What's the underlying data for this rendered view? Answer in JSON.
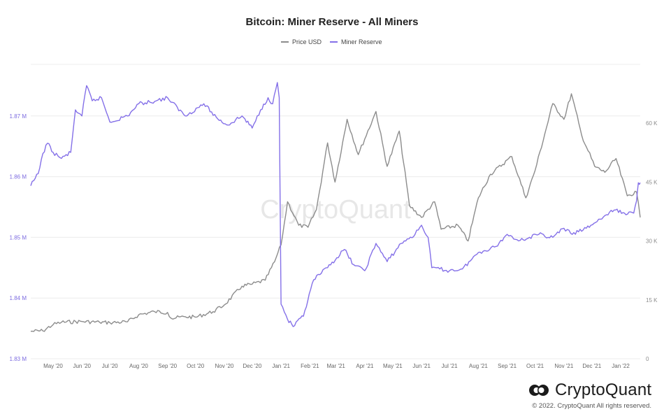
{
  "chart_data": {
    "type": "line",
    "title": "Bitcoin: Miner Reserve - All Miners",
    "legend": {
      "placement": "top-center"
    },
    "x_ticks": [
      "May '20",
      "Jun '20",
      "Jul '20",
      "Aug '20",
      "Sep '20",
      "Oct '20",
      "Nov '20",
      "Dec '20",
      "Jan '21",
      "Feb '21",
      "Mar '21",
      "Apr '21",
      "May '21",
      "Jun '21",
      "Jul '21",
      "Aug '21",
      "Sep '21",
      "Oct '21",
      "Nov '21",
      "Dec '21",
      "Jan '22"
    ],
    "y_left": {
      "ticks": [
        "1.83 M",
        "1.84 M",
        "1.85 M",
        "1.86 M",
        "1.87 M"
      ],
      "range": [
        1.83,
        1.8785
      ],
      "unit": "M"
    },
    "y_right": {
      "ticks": [
        "0",
        "15 K",
        "30 K",
        "45 K",
        "60 K"
      ],
      "range": [
        0,
        75000
      ]
    },
    "grid": "horizontal",
    "watermark": "CryptoQuant",
    "series": [
      {
        "name": "Price USD",
        "axis": "right",
        "color": "#8c8c8c",
        "points": [
          [
            "2020-04-07",
            7000
          ],
          [
            "2020-04-20",
            7100
          ],
          [
            "2020-05-01",
            8700
          ],
          [
            "2020-05-10",
            9300
          ],
          [
            "2020-06-01",
            9500
          ],
          [
            "2020-06-20",
            9300
          ],
          [
            "2020-07-01",
            9200
          ],
          [
            "2020-07-20",
            9400
          ],
          [
            "2020-08-01",
            11200
          ],
          [
            "2020-08-18",
            12000
          ],
          [
            "2020-09-01",
            11800
          ],
          [
            "2020-09-05",
            10300
          ],
          [
            "2020-09-20",
            10700
          ],
          [
            "2020-10-01",
            10600
          ],
          [
            "2020-10-20",
            12000
          ],
          [
            "2020-11-01",
            13700
          ],
          [
            "2020-11-20",
            18500
          ],
          [
            "2020-12-01",
            19000
          ],
          [
            "2020-12-15",
            20000
          ],
          [
            "2020-12-25",
            24700
          ],
          [
            "2021-01-01",
            29000
          ],
          [
            "2021-01-08",
            40000
          ],
          [
            "2021-01-20",
            34000
          ],
          [
            "2021-01-30",
            33500
          ],
          [
            "2021-02-08",
            38000
          ],
          [
            "2021-02-20",
            55000
          ],
          [
            "2021-02-28",
            45000
          ],
          [
            "2021-03-13",
            61000
          ],
          [
            "2021-03-25",
            52000
          ],
          [
            "2021-04-13",
            63000
          ],
          [
            "2021-04-25",
            49000
          ],
          [
            "2021-05-08",
            58000
          ],
          [
            "2021-05-19",
            39000
          ],
          [
            "2021-06-01",
            36000
          ],
          [
            "2021-06-15",
            40000
          ],
          [
            "2021-06-22",
            33000
          ],
          [
            "2021-07-10",
            34000
          ],
          [
            "2021-07-21",
            30000
          ],
          [
            "2021-08-01",
            41000
          ],
          [
            "2021-08-14",
            47000
          ],
          [
            "2021-09-06",
            51500
          ],
          [
            "2021-09-21",
            41000
          ],
          [
            "2021-10-01",
            48000
          ],
          [
            "2021-10-20",
            65000
          ],
          [
            "2021-11-01",
            61000
          ],
          [
            "2021-11-09",
            67500
          ],
          [
            "2021-11-20",
            57000
          ],
          [
            "2021-12-04",
            49000
          ],
          [
            "2021-12-15",
            47500
          ],
          [
            "2021-12-27",
            51000
          ],
          [
            "2022-01-08",
            41500
          ],
          [
            "2022-01-18",
            42500
          ],
          [
            "2022-01-22",
            36000
          ]
        ]
      },
      {
        "name": "Miner Reserve",
        "axis": "left",
        "color": "#8470e8",
        "points": [
          [
            "2020-04-07",
            1.8585
          ],
          [
            "2020-04-15",
            1.8605
          ],
          [
            "2020-04-20",
            1.8638
          ],
          [
            "2020-04-25",
            1.8655
          ],
          [
            "2020-05-01",
            1.864
          ],
          [
            "2020-05-10",
            1.863
          ],
          [
            "2020-05-20",
            1.864
          ],
          [
            "2020-05-25",
            1.871
          ],
          [
            "2020-06-01",
            1.87
          ],
          [
            "2020-06-06",
            1.875
          ],
          [
            "2020-06-12",
            1.8725
          ],
          [
            "2020-06-22",
            1.873
          ],
          [
            "2020-07-01",
            1.869
          ],
          [
            "2020-07-20",
            1.87
          ],
          [
            "2020-08-01",
            1.872
          ],
          [
            "2020-08-20",
            1.8725
          ],
          [
            "2020-09-01",
            1.873
          ],
          [
            "2020-09-20",
            1.87
          ],
          [
            "2020-10-10",
            1.872
          ],
          [
            "2020-10-25",
            1.8695
          ],
          [
            "2020-11-05",
            1.8685
          ],
          [
            "2020-11-20",
            1.87
          ],
          [
            "2020-12-01",
            1.868
          ],
          [
            "2020-12-10",
            1.871
          ],
          [
            "2020-12-18",
            1.873
          ],
          [
            "2020-12-23",
            1.872
          ],
          [
            "2020-12-28",
            1.8755
          ],
          [
            "2020-12-30",
            1.873
          ],
          [
            "2021-01-01",
            1.839
          ],
          [
            "2021-01-08",
            1.8365
          ],
          [
            "2021-01-14",
            1.8353
          ],
          [
            "2021-01-25",
            1.837
          ],
          [
            "2021-02-05",
            1.843
          ],
          [
            "2021-02-20",
            1.845
          ],
          [
            "2021-03-10",
            1.848
          ],
          [
            "2021-03-20",
            1.8455
          ],
          [
            "2021-04-01",
            1.8445
          ],
          [
            "2021-04-13",
            1.849
          ],
          [
            "2021-04-25",
            1.846
          ],
          [
            "2021-05-10",
            1.849
          ],
          [
            "2021-05-25",
            1.8505
          ],
          [
            "2021-06-01",
            1.852
          ],
          [
            "2021-06-08",
            1.85
          ],
          [
            "2021-06-12",
            1.845
          ],
          [
            "2021-07-01",
            1.8445
          ],
          [
            "2021-07-15",
            1.8448
          ],
          [
            "2021-08-01",
            1.8475
          ],
          [
            "2021-08-20",
            1.8485
          ],
          [
            "2021-09-01",
            1.8505
          ],
          [
            "2021-09-15",
            1.8495
          ],
          [
            "2021-10-05",
            1.8505
          ],
          [
            "2021-10-20",
            1.85
          ],
          [
            "2021-11-01",
            1.8515
          ],
          [
            "2021-11-10",
            1.8505
          ],
          [
            "2021-11-25",
            1.8515
          ],
          [
            "2021-12-10",
            1.853
          ],
          [
            "2021-12-25",
            1.8545
          ],
          [
            "2022-01-05",
            1.854
          ],
          [
            "2022-01-15",
            1.854
          ],
          [
            "2022-01-18",
            1.856
          ],
          [
            "2022-01-20",
            1.859
          ],
          [
            "2022-01-22",
            1.859
          ]
        ]
      }
    ]
  },
  "branding": {
    "logo_text": "CryptoQuant",
    "copyright": "© 2022. CryptoQuant All rights reserved."
  }
}
